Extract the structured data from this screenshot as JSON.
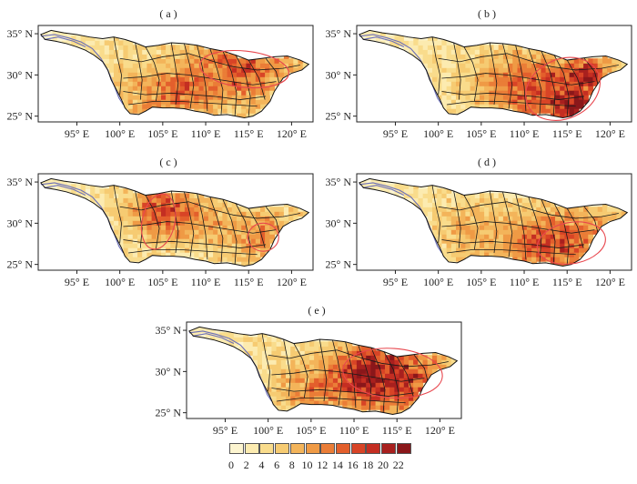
{
  "figure": {
    "panel_labels": [
      "( a )",
      "( b )",
      "( c )",
      "( d )",
      "( e )"
    ],
    "lat_ticks": [
      "35° N",
      "30° N",
      "25° N"
    ],
    "lon_ticks": [
      "95° E",
      "100° E",
      "105° E",
      "110° E",
      "115° E",
      "120° E"
    ],
    "lat_values": [
      35,
      30,
      25
    ],
    "lon_values": [
      95,
      100,
      105,
      110,
      115,
      120
    ],
    "lon_range": [
      90.5,
      122.5
    ],
    "lat_range": [
      24.3,
      36
    ]
  },
  "colorbar": {
    "tick_labels": [
      "0",
      "2",
      "4",
      "6",
      "8",
      "10",
      "12",
      "14",
      "16",
      "18",
      "20",
      "22"
    ],
    "colors": [
      "#fdf5d0",
      "#fcebb0",
      "#f9dc8c",
      "#f6cb72",
      "#f3b45a",
      "#ef9a45",
      "#ea7d37",
      "#e35f2c",
      "#d84426",
      "#c42e22",
      "#a8201e",
      "#8a171a"
    ]
  },
  "highlight_color": "#e8474e",
  "river_color": "#6b6fb8"
}
